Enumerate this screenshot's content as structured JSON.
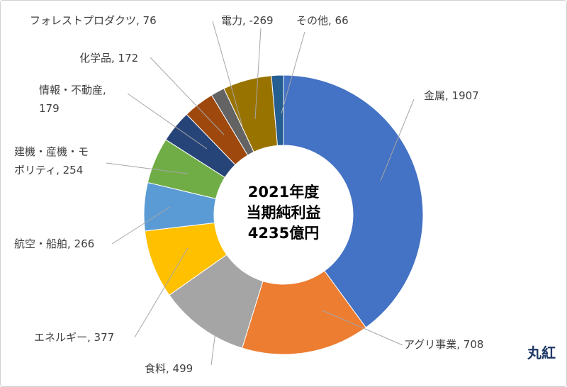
{
  "chart_data": {
    "type": "pie",
    "style": "donut",
    "center_text": [
      "2021年度",
      "当期純利益",
      "4235億円"
    ],
    "brand": "丸紅",
    "slices": [
      {
        "name": "金属",
        "value": 1907,
        "color": "#4472c4",
        "label_lines": [
          "金属, 1907"
        ]
      },
      {
        "name": "アグリ事業",
        "value": 708,
        "color": "#ed7d31",
        "label_lines": [
          "アグリ事業, 708"
        ]
      },
      {
        "name": "食料",
        "value": 499,
        "color": "#a5a5a5",
        "label_lines": [
          "食料, 499"
        ]
      },
      {
        "name": "エネルギー",
        "value": 377,
        "color": "#ffc000",
        "label_lines": [
          "エネルギー, 377"
        ]
      },
      {
        "name": "航空・船舶",
        "value": 266,
        "color": "#5b9bd5",
        "label_lines": [
          "航空・船舶, 266"
        ]
      },
      {
        "name": "建機・産機・モボリティ",
        "value": 254,
        "color": "#70ad47",
        "label_lines": [
          "建機・産機・モ",
          "ボリティ, 254"
        ]
      },
      {
        "name": "情報・不動産",
        "value": 179,
        "color": "#264478",
        "label_lines": [
          "情報・不動産,",
          "179"
        ]
      },
      {
        "name": "化学品",
        "value": 172,
        "color": "#9e480e",
        "label_lines": [
          "化学品, 172"
        ]
      },
      {
        "name": "フォレストプロダクツ",
        "value": 76,
        "color": "#636363",
        "label_lines": [
          "フォレストプロダクツ, 76"
        ]
      },
      {
        "name": "電力",
        "value": -269,
        "color": "#997300",
        "label_lines": [
          "電力, -269"
        ]
      },
      {
        "name": "その他",
        "value": 66,
        "color": "#255e91",
        "label_lines": [
          "その他, 66"
        ]
      }
    ]
  }
}
